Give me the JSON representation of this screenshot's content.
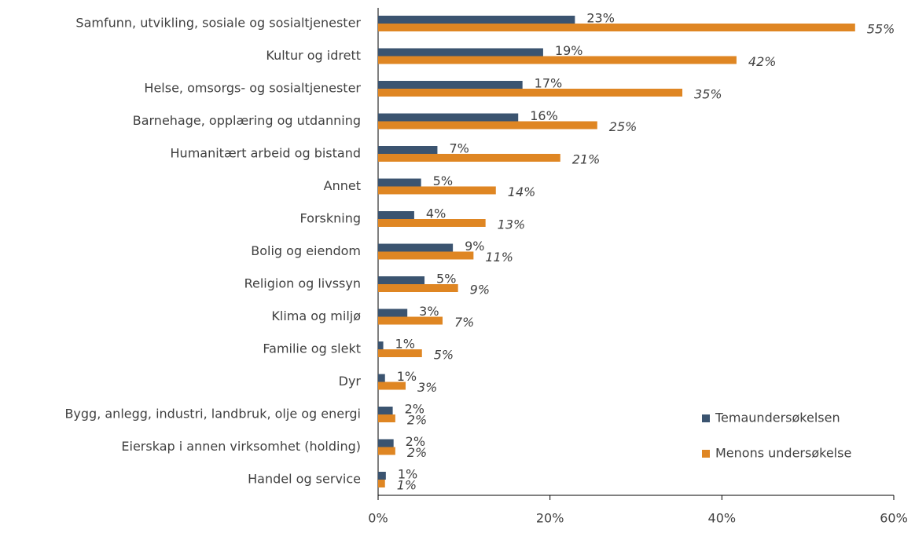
{
  "chart_data": {
    "type": "hbar",
    "categories": [
      "Samfunn, utvikling, sosiale og sosialtjenester",
      "Kultur og idrett",
      "Helse, omsorgs- og sosialtjenester",
      "Barnehage, opplæring og utdanning",
      "Humanitært arbeid og bistand",
      "Annet",
      "Forskning",
      "Bolig og eiendom",
      "Religion og livssyn",
      "Klima og miljø",
      "Familie og slekt",
      "Dyr",
      "Bygg, anlegg, industri, landbruk, olje og energi",
      "Eierskap i annen virksomhet (holding)",
      "Handel og service"
    ],
    "series": [
      {
        "name": "Temaundersøkelsen",
        "color": "#3b5470",
        "values": [
          22.9,
          19.2,
          16.8,
          16.3,
          6.9,
          5.0,
          4.2,
          8.7,
          5.4,
          3.4,
          0.6,
          0.8,
          1.7,
          1.8,
          0.9
        ],
        "value_labels": [
          "23%",
          "19%",
          "17%",
          "16%",
          "7%",
          "5%",
          "4%",
          "9%",
          "5%",
          "3%",
          "1%",
          "1%",
          "2%",
          "2%",
          "1%"
        ]
      },
      {
        "name": "Menons undersøkelse",
        "color": "#df8623",
        "values": [
          55.5,
          41.7,
          35.4,
          25.5,
          21.2,
          13.7,
          12.5,
          11.1,
          9.3,
          7.5,
          5.1,
          3.2,
          2.0,
          2.0,
          0.8
        ],
        "value_labels": [
          "55%",
          "42%",
          "35%",
          "25%",
          "21%",
          "14%",
          "13%",
          "11%",
          "9%",
          "7%",
          "5%",
          "3%",
          "2%",
          "2%",
          "1%"
        ]
      }
    ],
    "xlim": [
      0,
      60
    ],
    "xticks": [
      {
        "value": 0,
        "label": "0%"
      },
      {
        "value": 20,
        "label": "20%"
      },
      {
        "value": 40,
        "label": "40%"
      },
      {
        "value": 60,
        "label": "60%"
      }
    ],
    "legend": "lower right"
  }
}
